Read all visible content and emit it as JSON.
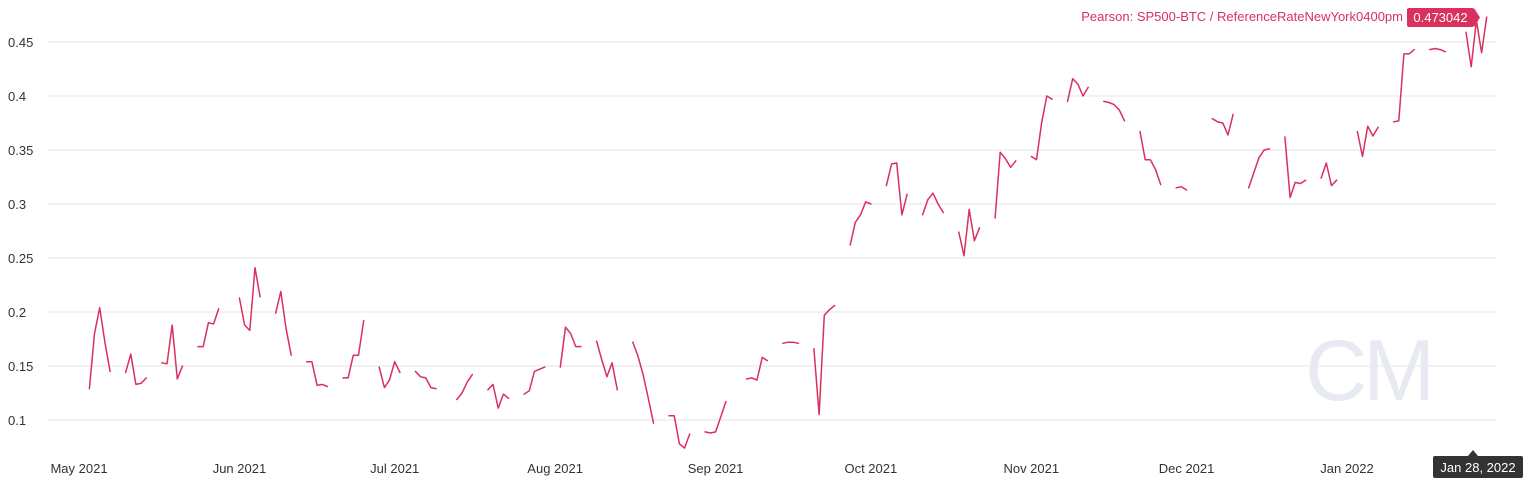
{
  "chart_data": {
    "type": "line",
    "title": "",
    "xlabel": "",
    "ylabel": "",
    "ylim": [
      0.07,
      0.47
    ],
    "yticks": [
      0.1,
      0.15,
      0.2,
      0.25,
      0.3,
      0.35,
      0.4,
      0.45
    ],
    "ytick_labels": [
      "0.1",
      "0.15",
      "0.2",
      "0.25",
      "0.3",
      "0.35",
      "0.4",
      "0.45"
    ],
    "xlim": [
      "2021-04-27",
      "2022-02-05"
    ],
    "xticks": [
      "2021-05-01",
      "2021-06-01",
      "2021-07-01",
      "2021-08-01",
      "2021-09-01",
      "2021-10-01",
      "2021-11-01",
      "2021-12-01",
      "2022-01-01"
    ],
    "xtick_labels": [
      "May 2021",
      "Jun 2021",
      "Jul 2021",
      "Aug 2021",
      "Sep 2021",
      "Oct 2021",
      "Nov 2021",
      "Dec 2021",
      "Jan 2022"
    ],
    "grid": true,
    "legend_position": "top-right",
    "crosshair_date_label": "Jan 28, 2022",
    "series": [
      {
        "name": "Pearson: SP500-BTC / ReferenceRateNewYork0400pm",
        "color": "#d9305e",
        "current_value_label": "0.473042",
        "segments": [
          [
            [
              "2021-05-03",
              0.129
            ],
            [
              "2021-05-04",
              0.18
            ],
            [
              "2021-05-05",
              0.204
            ],
            [
              "2021-05-06",
              0.172
            ],
            [
              "2021-05-07",
              0.145
            ]
          ],
          [
            [
              "2021-05-10",
              0.144
            ],
            [
              "2021-05-11",
              0.161
            ],
            [
              "2021-05-12",
              0.133
            ],
            [
              "2021-05-13",
              0.134
            ],
            [
              "2021-05-14",
              0.139
            ]
          ],
          [
            [
              "2021-05-17",
              0.153
            ],
            [
              "2021-05-18",
              0.152
            ],
            [
              "2021-05-19",
              0.188
            ],
            [
              "2021-05-20",
              0.138
            ],
            [
              "2021-05-21",
              0.15
            ]
          ],
          [
            [
              "2021-05-24",
              0.168
            ],
            [
              "2021-05-25",
              0.168
            ],
            [
              "2021-05-26",
              0.19
            ],
            [
              "2021-05-27",
              0.189
            ],
            [
              "2021-05-28",
              0.203
            ]
          ],
          [
            [
              "2021-06-01",
              0.213
            ],
            [
              "2021-06-02",
              0.188
            ],
            [
              "2021-06-03",
              0.183
            ],
            [
              "2021-06-04",
              0.241
            ],
            [
              "2021-06-05",
              0.214
            ]
          ],
          [
            [
              "2021-06-08",
              0.199
            ],
            [
              "2021-06-09",
              0.219
            ],
            [
              "2021-06-10",
              0.185
            ],
            [
              "2021-06-11",
              0.16
            ]
          ],
          [
            [
              "2021-06-14",
              0.154
            ],
            [
              "2021-06-15",
              0.154
            ],
            [
              "2021-06-16",
              0.132
            ],
            [
              "2021-06-17",
              0.133
            ],
            [
              "2021-06-18",
              0.131
            ]
          ],
          [
            [
              "2021-06-21",
              0.139
            ],
            [
              "2021-06-22",
              0.139
            ],
            [
              "2021-06-23",
              0.16
            ],
            [
              "2021-06-24",
              0.16
            ],
            [
              "2021-06-25",
              0.192
            ]
          ],
          [
            [
              "2021-06-28",
              0.149
            ],
            [
              "2021-06-29",
              0.13
            ],
            [
              "2021-06-30",
              0.137
            ],
            [
              "2021-07-01",
              0.154
            ],
            [
              "2021-07-02",
              0.144
            ]
          ],
          [
            [
              "2021-07-05",
              0.145
            ],
            [
              "2021-07-06",
              0.14
            ],
            [
              "2021-07-07",
              0.139
            ],
            [
              "2021-07-08",
              0.13
            ],
            [
              "2021-07-09",
              0.129
            ]
          ],
          [
            [
              "2021-07-13",
              0.119
            ],
            [
              "2021-07-14",
              0.125
            ],
            [
              "2021-07-15",
              0.135
            ],
            [
              "2021-07-16",
              0.142
            ]
          ],
          [
            [
              "2021-07-19",
              0.128
            ],
            [
              "2021-07-20",
              0.133
            ],
            [
              "2021-07-21",
              0.111
            ],
            [
              "2021-07-22",
              0.124
            ],
            [
              "2021-07-23",
              0.12
            ]
          ],
          [
            [
              "2021-07-26",
              0.124
            ],
            [
              "2021-07-27",
              0.127
            ],
            [
              "2021-07-28",
              0.145
            ],
            [
              "2021-07-29",
              0.147
            ],
            [
              "2021-07-30",
              0.149
            ]
          ],
          [
            [
              "2021-08-02",
              0.149
            ],
            [
              "2021-08-03",
              0.186
            ],
            [
              "2021-08-04",
              0.18
            ],
            [
              "2021-08-05",
              0.168
            ],
            [
              "2021-08-06",
              0.168
            ]
          ],
          [
            [
              "2021-08-09",
              0.173
            ],
            [
              "2021-08-10",
              0.156
            ],
            [
              "2021-08-11",
              0.14
            ],
            [
              "2021-08-12",
              0.153
            ],
            [
              "2021-08-13",
              0.128
            ]
          ],
          [
            [
              "2021-08-16",
              0.172
            ],
            [
              "2021-08-17",
              0.159
            ],
            [
              "2021-08-18",
              0.142
            ],
            [
              "2021-08-19",
              0.12
            ],
            [
              "2021-08-20",
              0.097
            ]
          ],
          [
            [
              "2021-08-23",
              0.104
            ],
            [
              "2021-08-24",
              0.104
            ],
            [
              "2021-08-25",
              0.078
            ],
            [
              "2021-08-26",
              0.074
            ],
            [
              "2021-08-27",
              0.087
            ]
          ],
          [
            [
              "2021-08-30",
              0.089
            ],
            [
              "2021-08-31",
              0.088
            ],
            [
              "2021-09-01",
              0.089
            ],
            [
              "2021-09-02",
              0.103
            ],
            [
              "2021-09-03",
              0.117
            ]
          ],
          [
            [
              "2021-09-07",
              0.138
            ],
            [
              "2021-09-08",
              0.139
            ],
            [
              "2021-09-09",
              0.137
            ],
            [
              "2021-09-10",
              0.158
            ],
            [
              "2021-09-11",
              0.155
            ]
          ],
          [
            [
              "2021-09-14",
              0.171
            ],
            [
              "2021-09-15",
              0.172
            ],
            [
              "2021-09-16",
              0.172
            ],
            [
              "2021-09-17",
              0.171
            ]
          ],
          [
            [
              "2021-09-20",
              0.166
            ],
            [
              "2021-09-21",
              0.105
            ],
            [
              "2021-09-22",
              0.197
            ],
            [
              "2021-09-23",
              0.202
            ],
            [
              "2021-09-24",
              0.206
            ]
          ],
          [
            [
              "2021-09-27",
              0.262
            ],
            [
              "2021-09-28",
              0.283
            ],
            [
              "2021-09-29",
              0.29
            ],
            [
              "2021-09-30",
              0.302
            ],
            [
              "2021-10-01",
              0.3
            ]
          ],
          [
            [
              "2021-10-04",
              0.317
            ],
            [
              "2021-10-05",
              0.337
            ],
            [
              "2021-10-06",
              0.338
            ],
            [
              "2021-10-07",
              0.29
            ],
            [
              "2021-10-08",
              0.309
            ]
          ],
          [
            [
              "2021-10-11",
              0.29
            ],
            [
              "2021-10-12",
              0.304
            ],
            [
              "2021-10-13",
              0.31
            ],
            [
              "2021-10-14",
              0.3
            ],
            [
              "2021-10-15",
              0.292
            ]
          ],
          [
            [
              "2021-10-18",
              0.274
            ],
            [
              "2021-10-19",
              0.252
            ],
            [
              "2021-10-20",
              0.295
            ],
            [
              "2021-10-21",
              0.266
            ],
            [
              "2021-10-22",
              0.278
            ]
          ],
          [
            [
              "2021-10-25",
              0.287
            ],
            [
              "2021-10-26",
              0.348
            ],
            [
              "2021-10-27",
              0.342
            ],
            [
              "2021-10-28",
              0.334
            ],
            [
              "2021-10-29",
              0.34
            ]
          ],
          [
            [
              "2021-11-01",
              0.344
            ],
            [
              "2021-11-02",
              0.341
            ],
            [
              "2021-11-03",
              0.375
            ],
            [
              "2021-11-04",
              0.4
            ],
            [
              "2021-11-05",
              0.397
            ]
          ],
          [
            [
              "2021-11-08",
              0.395
            ],
            [
              "2021-11-09",
              0.416
            ],
            [
              "2021-11-10",
              0.411
            ],
            [
              "2021-11-11",
              0.4
            ],
            [
              "2021-11-12",
              0.408
            ]
          ],
          [
            [
              "2021-11-15",
              0.395
            ],
            [
              "2021-11-16",
              0.394
            ],
            [
              "2021-11-17",
              0.392
            ],
            [
              "2021-11-18",
              0.387
            ],
            [
              "2021-11-19",
              0.377
            ]
          ],
          [
            [
              "2021-11-22",
              0.367
            ],
            [
              "2021-11-23",
              0.341
            ],
            [
              "2021-11-24",
              0.341
            ],
            [
              "2021-11-25",
              0.332
            ],
            [
              "2021-11-26",
              0.318
            ]
          ],
          [
            [
              "2021-11-29",
              0.315
            ],
            [
              "2021-11-30",
              0.316
            ],
            [
              "2021-12-01",
              0.313
            ]
          ],
          [
            [
              "2021-12-06",
              0.379
            ],
            [
              "2021-12-07",
              0.376
            ],
            [
              "2021-12-08",
              0.375
            ],
            [
              "2021-12-09",
              0.364
            ],
            [
              "2021-12-10",
              0.383
            ]
          ],
          [
            [
              "2021-12-13",
              0.315
            ],
            [
              "2021-12-14",
              0.329
            ],
            [
              "2021-12-15",
              0.343
            ],
            [
              "2021-12-16",
              0.35
            ],
            [
              "2021-12-17",
              0.351
            ]
          ],
          [
            [
              "2021-12-20",
              0.362
            ],
            [
              "2021-12-21",
              0.306
            ],
            [
              "2021-12-22",
              0.32
            ],
            [
              "2021-12-23",
              0.319
            ],
            [
              "2021-12-24",
              0.322
            ]
          ],
          [
            [
              "2021-12-27",
              0.324
            ],
            [
              "2021-12-28",
              0.338
            ],
            [
              "2021-12-29",
              0.317
            ],
            [
              "2021-12-30",
              0.322
            ]
          ],
          [
            [
              "2022-01-03",
              0.367
            ],
            [
              "2022-01-04",
              0.344
            ],
            [
              "2022-01-05",
              0.372
            ],
            [
              "2022-01-06",
              0.363
            ],
            [
              "2022-01-07",
              0.371
            ]
          ],
          [
            [
              "2022-01-10",
              0.376
            ],
            [
              "2022-01-11",
              0.377
            ],
            [
              "2022-01-12",
              0.439
            ],
            [
              "2022-01-13",
              0.439
            ],
            [
              "2022-01-14",
              0.443
            ]
          ],
          [
            [
              "2022-01-17",
              0.443
            ],
            [
              "2022-01-18",
              0.444
            ],
            [
              "2022-01-19",
              0.443
            ],
            [
              "2022-01-20",
              0.441
            ]
          ],
          [
            [
              "2022-01-24",
              0.459
            ],
            [
              "2022-01-25",
              0.427
            ],
            [
              "2022-01-26",
              0.47
            ],
            [
              "2022-01-27",
              0.44
            ],
            [
              "2022-01-28",
              0.473042
            ]
          ]
        ]
      }
    ]
  },
  "watermark": {
    "text": "CM"
  }
}
